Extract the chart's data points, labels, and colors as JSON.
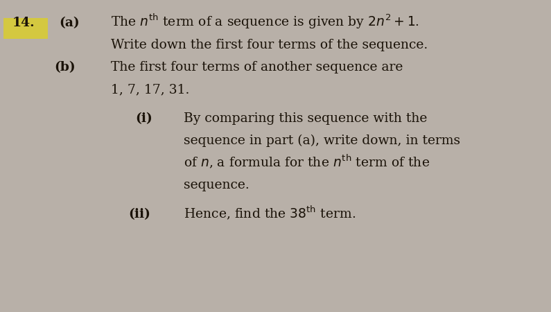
{
  "background_color": "#b8b0a8",
  "number_label": "14.",
  "part_a_label": "(a)",
  "part_a_line1": "The $n^{\\mathrm{th}}$ term of a sequence is given by $2n^2 + 1$.",
  "part_a_line2": "Write down the first four terms of the sequence.",
  "part_b_label": "(b)",
  "part_b_line1": "The first four terms of another sequence are",
  "part_b_line2": "1, 7, 17, 31.",
  "part_i_label": "(i)",
  "part_i_line1": "By comparing this sequence with the",
  "part_i_line2": "sequence in part (a), write down, in terms",
  "part_i_line3": "of $n$, a formula for the $n^{\\mathrm{th}}$ term of the",
  "part_i_line4": "sequence.",
  "part_ii_label": "(ii)",
  "part_ii_line1": "Hence, find the $38^{\\mathrm{th}}$ term.",
  "font_size": 13.5,
  "font_color": "#1a1208",
  "highlight_color": "#d4c840"
}
